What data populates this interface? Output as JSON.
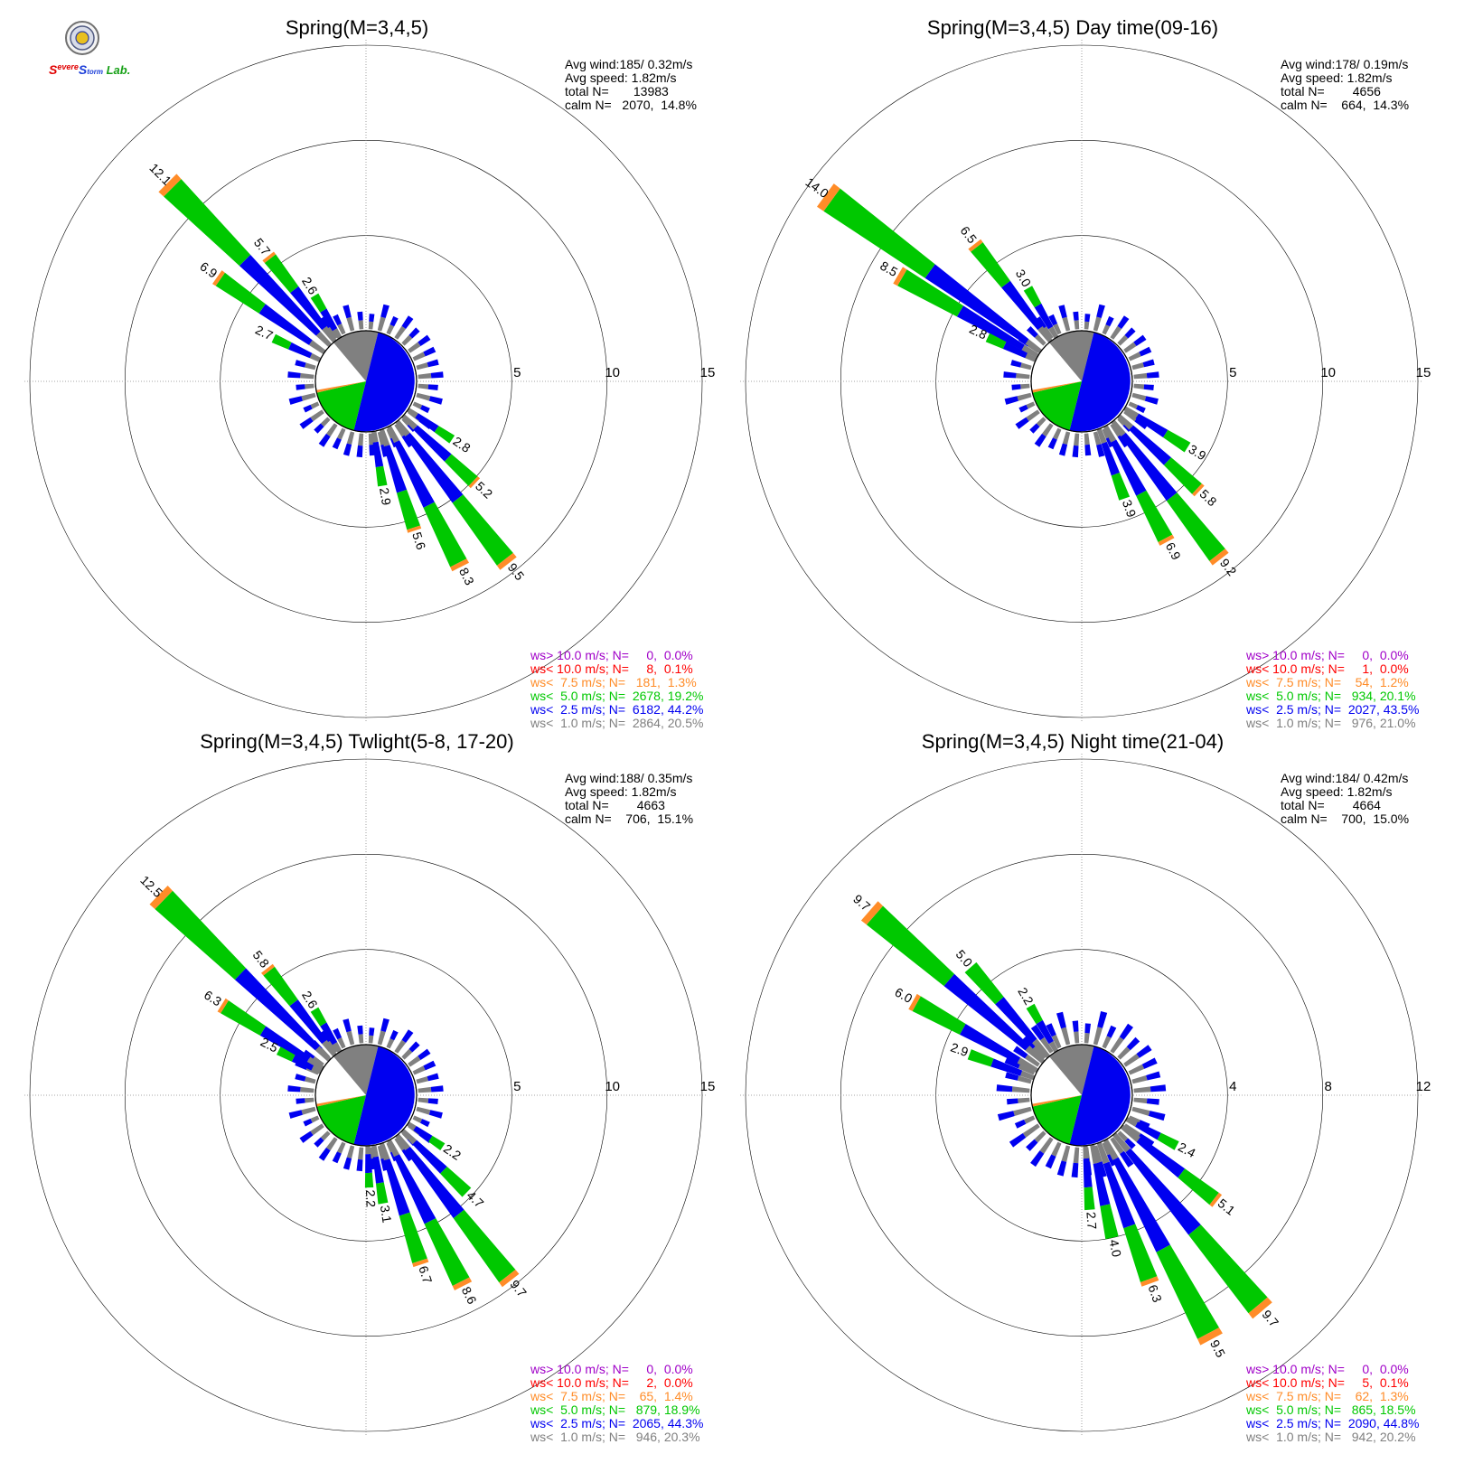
{
  "logo": {
    "text_parts": [
      "S",
      "evere",
      "S",
      "torm",
      " Lab."
    ],
    "colors": {
      "s_red": "#e00000",
      "s_blue": "#1a3cd8",
      "lab_green": "#16a016"
    }
  },
  "colors": {
    "calm": "#808080",
    "lt_2_5": "#0000f0",
    "lt_5_0": "#00c800",
    "lt_7_5": "#ff8c28",
    "lt_10_0": "#ff0000",
    "gt_10_0": "#a000c8"
  },
  "chart_data": [
    {
      "type": "wind-rose",
      "title": "Spring(M=3,4,5)",
      "ring_labels": [
        "5",
        "10",
        "15"
      ],
      "rmax": 15,
      "stats": [
        "Avg wind:185/ 0.32m/s",
        "Avg speed: 1.82m/s",
        "total N=       13983",
        "calm N=   2070,  14.8%"
      ],
      "legend": [
        {
          "text": "ws> 10.0 m/s; N=     0,  0.0%",
          "color": "#a000c8"
        },
        {
          "text": "ws< 10.0 m/s; N=     8,  0.1%",
          "color": "#ff0000"
        },
        {
          "text": "ws<  7.5 m/s; N=   181,  1.3%",
          "color": "#ff8c28"
        },
        {
          "text": "ws<  5.0 m/s; N=  2678, 19.2%",
          "color": "#00c800"
        },
        {
          "text": "ws<  2.5 m/s; N=  6182, 44.2%",
          "color": "#0000f0"
        },
        {
          "text": "ws<  1.0 m/s; N=  2864, 20.5%",
          "color": "#808080"
        }
      ],
      "pie": {
        "gray": 18,
        "blue": 60,
        "green": 21,
        "orange": 1
      },
      "petals": [
        {
          "dir": 315,
          "total": 12.1,
          "label": "12.1"
        },
        {
          "dir": 305,
          "total": 6.9,
          "label": "6.9"
        },
        {
          "dir": 322,
          "total": 5.7,
          "label": "5.7"
        },
        {
          "dir": 329,
          "total": 2.6,
          "label": "2.6"
        },
        {
          "dir": 295,
          "total": 2.7,
          "label": "2.7"
        },
        {
          "dir": 142,
          "total": 9.5,
          "label": "9.5"
        },
        {
          "dir": 153,
          "total": 8.3,
          "label": "8.3"
        },
        {
          "dir": 162,
          "total": 5.6,
          "label": "5.6"
        },
        {
          "dir": 133,
          "total": 5.2,
          "label": "5.2"
        },
        {
          "dir": 124,
          "total": 2.8,
          "label": "2.8"
        },
        {
          "dir": 171,
          "total": 2.9,
          "label": "2.9"
        }
      ]
    },
    {
      "type": "wind-rose",
      "title": "Spring(M=3,4,5) Day time(09-16)",
      "ring_labels": [
        "5",
        "10",
        "15"
      ],
      "rmax": 15,
      "stats": [
        "Avg wind:178/ 0.19m/s",
        "Avg speed: 1.82m/s",
        "total N=        4656",
        "calm N=    664,  14.3%"
      ],
      "legend": [
        {
          "text": "ws> 10.0 m/s; N=     0,  0.0%",
          "color": "#a000c8"
        },
        {
          "text": "ws< 10.0 m/s; N=     1,  0.0%",
          "color": "#ff0000"
        },
        {
          "text": "ws<  7.5 m/s; N=    54,  1.2%",
          "color": "#ff8c28"
        },
        {
          "text": "ws<  5.0 m/s; N=   934, 20.1%",
          "color": "#00c800"
        },
        {
          "text": "ws<  2.5 m/s; N=  2027, 43.5%",
          "color": "#0000f0"
        },
        {
          "text": "ws<  1.0 m/s; N=   976, 21.0%",
          "color": "#808080"
        }
      ],
      "pie": {
        "gray": 18,
        "blue": 60,
        "green": 21,
        "orange": 1
      },
      "petals": [
        {
          "dir": 306,
          "total": 14.0,
          "label": "14.0"
        },
        {
          "dir": 300,
          "total": 8.5,
          "label": "8.5"
        },
        {
          "dir": 322,
          "total": 6.5,
          "label": "6.5"
        },
        {
          "dir": 330,
          "total": 3.0,
          "label": "3.0"
        },
        {
          "dir": 295,
          "total": 2.8,
          "label": "2.8"
        },
        {
          "dir": 142,
          "total": 9.2,
          "label": "9.2"
        },
        {
          "dir": 152,
          "total": 6.9,
          "label": "6.9"
        },
        {
          "dir": 133,
          "total": 5.8,
          "label": "5.8"
        },
        {
          "dir": 160,
          "total": 3.9,
          "label": "3.9"
        },
        {
          "dir": 122,
          "total": 3.9,
          "label": "3.9"
        }
      ]
    },
    {
      "type": "wind-rose",
      "title": "Spring(M=3,4,5) Twlight(5-8, 17-20)",
      "ring_labels": [
        "5",
        "10",
        "15"
      ],
      "rmax": 15,
      "stats": [
        "Avg wind:188/ 0.35m/s",
        "Avg speed: 1.82m/s",
        "total N=        4663",
        "calm N=    706,  15.1%"
      ],
      "legend": [
        {
          "text": "ws> 10.0 m/s; N=     0,  0.0%",
          "color": "#a000c8"
        },
        {
          "text": "ws< 10.0 m/s; N=     2,  0.0%",
          "color": "#ff0000"
        },
        {
          "text": "ws<  7.5 m/s; N=    65,  1.4%",
          "color": "#ff8c28"
        },
        {
          "text": "ws<  5.0 m/s; N=   879, 18.9%",
          "color": "#00c800"
        },
        {
          "text": "ws<  2.5 m/s; N=  2065, 44.3%",
          "color": "#0000f0"
        },
        {
          "text": "ws<  1.0 m/s; N=   946, 20.3%",
          "color": "#808080"
        }
      ],
      "pie": {
        "gray": 18,
        "blue": 60,
        "green": 21,
        "orange": 1
      },
      "petals": [
        {
          "dir": 314,
          "total": 12.5,
          "label": "12.5"
        },
        {
          "dir": 302,
          "total": 6.3,
          "label": "6.3"
        },
        {
          "dir": 322,
          "total": 5.8,
          "label": "5.8"
        },
        {
          "dir": 329,
          "total": 2.6,
          "label": "2.6"
        },
        {
          "dir": 297,
          "total": 2.5,
          "label": "2.5"
        },
        {
          "dir": 142,
          "total": 9.7,
          "label": "9.7"
        },
        {
          "dir": 153,
          "total": 8.6,
          "label": "8.6"
        },
        {
          "dir": 162,
          "total": 6.7,
          "label": "6.7"
        },
        {
          "dir": 134,
          "total": 4.7,
          "label": "4.7"
        },
        {
          "dir": 171,
          "total": 3.1,
          "label": "3.1"
        },
        {
          "dir": 178,
          "total": 2.2,
          "label": "2.2"
        },
        {
          "dir": 124,
          "total": 2.2,
          "label": "2.2"
        }
      ]
    },
    {
      "type": "wind-rose",
      "title": "Spring(M=3,4,5) Night time(21-04)",
      "ring_labels": [
        "4",
        "8",
        "12"
      ],
      "rmax": 12,
      "stats": [
        "Avg wind:184/ 0.42m/s",
        "Avg speed: 1.82m/s",
        "total N=        4664",
        "calm N=    700,  15.0%"
      ],
      "legend": [
        {
          "text": "ws> 10.0 m/s; N=     0,  0.0%",
          "color": "#a000c8"
        },
        {
          "text": "ws< 10.0 m/s; N=     5,  0.1%",
          "color": "#ff0000"
        },
        {
          "text": "ws<  7.5 m/s; N=    62,  1.3%",
          "color": "#ff8c28"
        },
        {
          "text": "ws<  5.0 m/s; N=   865, 18.5%",
          "color": "#00c800"
        },
        {
          "text": "ws<  2.5 m/s; N=  2090, 44.8%",
          "color": "#0000f0"
        },
        {
          "text": "ws<  1.0 m/s; N=   942, 20.2%",
          "color": "#808080"
        }
      ],
      "pie": {
        "gray": 18,
        "blue": 60,
        "green": 21,
        "orange": 1
      },
      "petals": [
        {
          "dir": 311,
          "total": 9.7,
          "label": "9.7"
        },
        {
          "dir": 299,
          "total": 6.0,
          "label": "6.0"
        },
        {
          "dir": 319,
          "total": 5.0,
          "label": "5.0"
        },
        {
          "dir": 330,
          "total": 2.2,
          "label": "2.2"
        },
        {
          "dir": 290,
          "total": 2.9,
          "label": "2.9"
        },
        {
          "dir": 140,
          "total": 9.7,
          "label": "9.7"
        },
        {
          "dir": 152,
          "total": 9.5,
          "label": "9.5"
        },
        {
          "dir": 160,
          "total": 6.3,
          "label": "6.3"
        },
        {
          "dir": 168,
          "total": 4.0,
          "label": "4.0"
        },
        {
          "dir": 128,
          "total": 5.1,
          "label": "5.1"
        },
        {
          "dir": 176,
          "total": 2.7,
          "label": "2.7"
        },
        {
          "dir": 118,
          "total": 2.4,
          "label": "2.4"
        }
      ]
    }
  ]
}
